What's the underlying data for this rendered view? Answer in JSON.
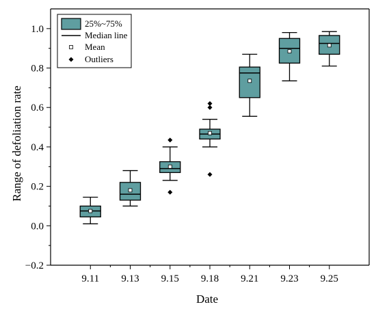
{
  "chart_data": {
    "type": "box",
    "xlabel": "Date",
    "ylabel": "Range of defoliation rate",
    "ylim": [
      -0.2,
      1.1
    ],
    "y_ticks": [
      "−0.2",
      "0.0",
      "0.2",
      "0.4",
      "0.6",
      "0.8",
      "1.0"
    ],
    "categories": [
      "9.11",
      "9.13",
      "9.15",
      "9.18",
      "9.21",
      "9.23",
      "9.25"
    ],
    "boxes": [
      {
        "category": "9.11",
        "whisker_low": 0.01,
        "q1": 0.045,
        "median": 0.075,
        "q3": 0.1,
        "whisker_high": 0.145,
        "mean": 0.075,
        "outliers": []
      },
      {
        "category": "9.13",
        "whisker_low": 0.1,
        "q1": 0.13,
        "median": 0.16,
        "q3": 0.22,
        "whisker_high": 0.28,
        "mean": 0.18,
        "outliers": []
      },
      {
        "category": "9.15",
        "whisker_low": 0.23,
        "q1": 0.27,
        "median": 0.29,
        "q3": 0.325,
        "whisker_high": 0.4,
        "mean": 0.3,
        "outliers": [
          0.17,
          0.435
        ]
      },
      {
        "category": "9.18",
        "whisker_low": 0.4,
        "q1": 0.44,
        "median": 0.465,
        "q3": 0.49,
        "whisker_high": 0.54,
        "mean": 0.47,
        "outliers": [
          0.26,
          0.6,
          0.62
        ]
      },
      {
        "category": "9.21",
        "whisker_low": 0.555,
        "q1": 0.65,
        "median": 0.775,
        "q3": 0.805,
        "whisker_high": 0.87,
        "mean": 0.735,
        "outliers": []
      },
      {
        "category": "9.23",
        "whisker_low": 0.735,
        "q1": 0.825,
        "median": 0.9,
        "q3": 0.95,
        "whisker_high": 0.98,
        "mean": 0.885,
        "outliers": []
      },
      {
        "category": "9.25",
        "whisker_low": 0.81,
        "q1": 0.87,
        "median": 0.925,
        "q3": 0.965,
        "whisker_high": 0.985,
        "mean": 0.915,
        "outliers": []
      }
    ],
    "legend": {
      "placement": "top-left",
      "items": [
        "25%~75%",
        "Median line",
        "Mean",
        "Outliers"
      ]
    },
    "box_fill": "#5f9ea0",
    "grid": false
  }
}
